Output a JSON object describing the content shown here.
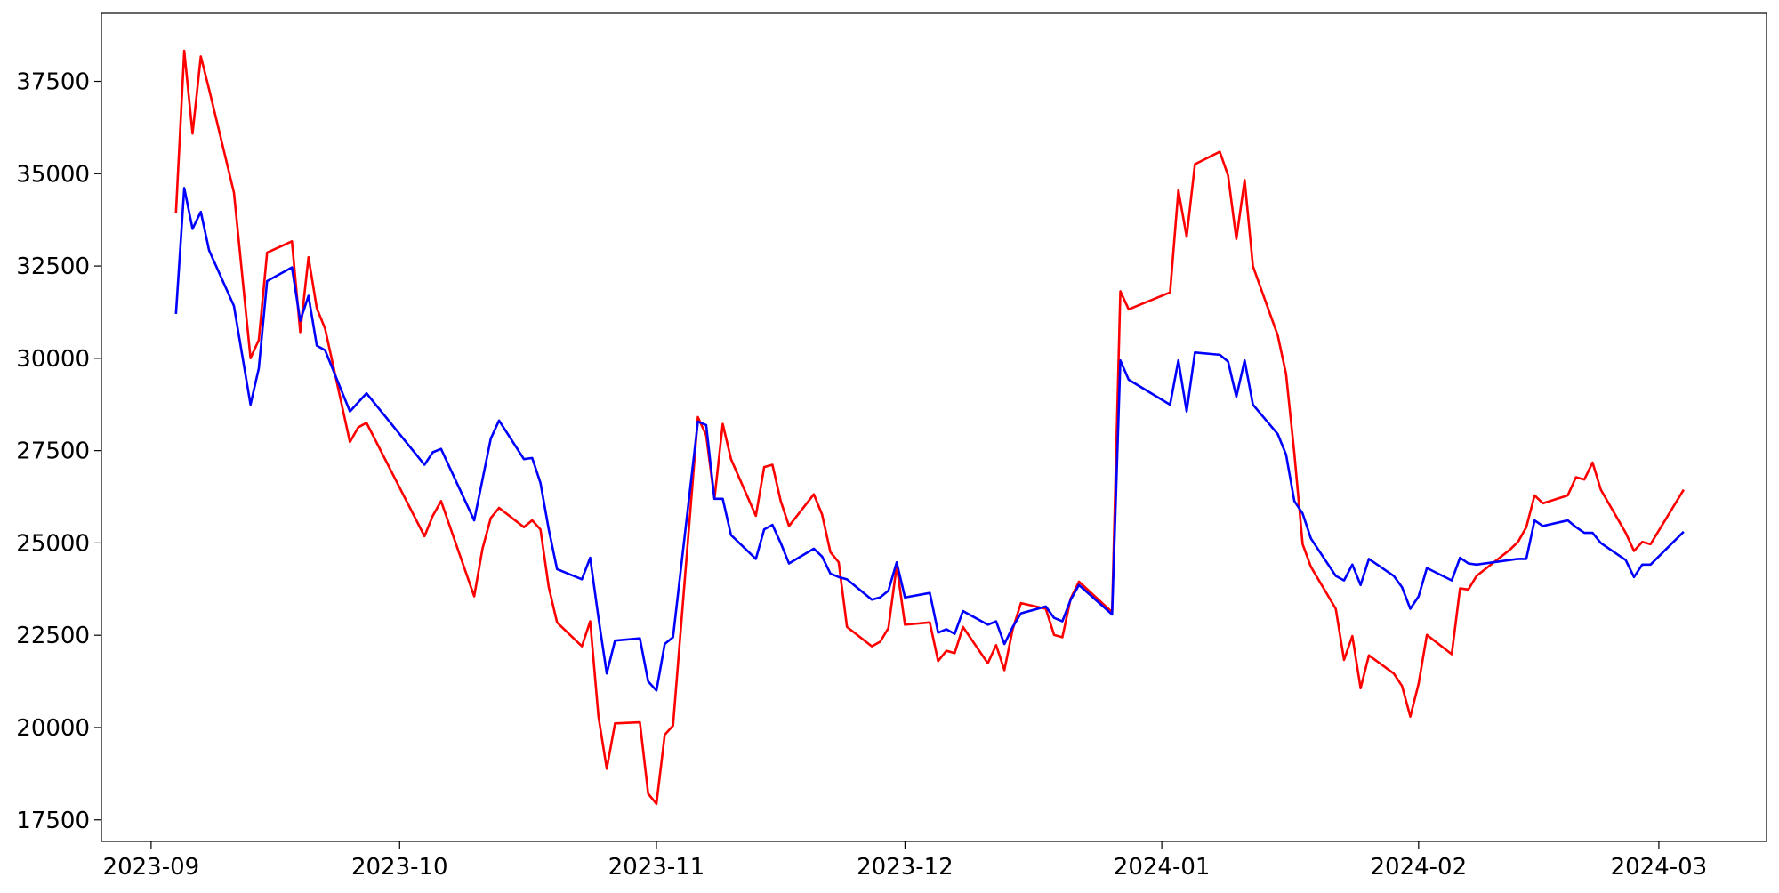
{
  "chart_data": {
    "type": "line",
    "x": [
      "2023-09-04",
      "2023-09-05",
      "2023-09-06",
      "2023-09-07",
      "2023-09-08",
      "2023-09-11",
      "2023-09-13",
      "2023-09-14",
      "2023-09-15",
      "2023-09-18",
      "2023-09-19",
      "2023-09-20",
      "2023-09-21",
      "2023-09-22",
      "2023-09-25",
      "2023-09-26",
      "2023-09-27",
      "2023-10-04",
      "2023-10-05",
      "2023-10-06",
      "2023-10-10",
      "2023-10-11",
      "2023-10-12",
      "2023-10-13",
      "2023-10-16",
      "2023-10-17",
      "2023-10-18",
      "2023-10-19",
      "2023-10-20",
      "2023-10-23",
      "2023-10-24",
      "2023-10-25",
      "2023-10-26",
      "2023-10-27",
      "2023-10-30",
      "2023-10-31",
      "2023-11-01",
      "2023-11-02",
      "2023-11-03",
      "2023-11-06",
      "2023-11-07",
      "2023-11-08",
      "2023-11-09",
      "2023-11-10",
      "2023-11-13",
      "2023-11-14",
      "2023-11-15",
      "2023-11-16",
      "2023-11-17",
      "2023-11-20",
      "2023-11-21",
      "2023-11-22",
      "2023-11-23",
      "2023-11-24",
      "2023-11-27",
      "2023-11-28",
      "2023-11-29",
      "2023-11-30",
      "2023-12-01",
      "2023-12-04",
      "2023-12-05",
      "2023-12-06",
      "2023-12-07",
      "2023-12-08",
      "2023-12-11",
      "2023-12-12",
      "2023-12-13",
      "2023-12-14",
      "2023-12-15",
      "2023-12-18",
      "2023-12-19",
      "2023-12-20",
      "2023-12-21",
      "2023-12-22",
      "2023-12-26",
      "2023-12-27",
      "2023-12-28",
      "2024-01-02",
      "2024-01-03",
      "2024-01-04",
      "2024-01-05",
      "2024-01-08",
      "2024-01-09",
      "2024-01-10",
      "2024-01-11",
      "2024-01-12",
      "2024-01-15",
      "2024-01-16",
      "2024-01-17",
      "2024-01-18",
      "2024-01-19",
      "2024-01-22",
      "2024-01-23",
      "2024-01-24",
      "2024-01-25",
      "2024-01-26",
      "2024-01-29",
      "2024-01-30",
      "2024-01-31",
      "2024-02-01",
      "2024-02-02",
      "2024-02-05",
      "2024-02-06",
      "2024-02-07",
      "2024-02-08",
      "2024-02-12",
      "2024-02-13",
      "2024-02-14",
      "2024-02-15",
      "2024-02-16",
      "2024-02-19",
      "2024-02-20",
      "2024-02-21",
      "2024-02-22",
      "2024-02-23",
      "2024-02-26",
      "2024-02-27",
      "2024-02-28",
      "2024-02-29",
      "2024-03-04"
    ],
    "series": [
      {
        "color": "#ff0000",
        "values": [
          33936,
          38329,
          36087,
          38176,
          37285,
          34489,
          30004,
          30496,
          32861,
          33168,
          30711,
          32738,
          31356,
          30803,
          27731,
          28130,
          28253,
          25181,
          25734,
          26134,
          23553,
          24843,
          25673,
          25949,
          25427,
          25611,
          25366,
          23799,
          22847,
          22201,
          22877,
          20297,
          18884,
          20112,
          20143,
          18208,
          17931,
          19805,
          20051,
          28407,
          27915,
          26195,
          28223,
          27270,
          25734,
          27055,
          27117,
          26134,
          25458,
          26318,
          25765,
          24751,
          24475,
          22724,
          22201,
          22324,
          22693,
          24383,
          22785,
          22847,
          21802,
          22079,
          22017,
          22724,
          21741,
          22232,
          21556,
          22662,
          23369,
          23215,
          22509,
          22447,
          23492,
          23952,
          23123,
          31817,
          31325,
          31786,
          34551,
          33291,
          35257,
          35595,
          34950,
          33230,
          34827,
          32493,
          30619,
          29574,
          27424,
          24966,
          24352,
          23215,
          21833,
          22478,
          21065,
          21956,
          21464,
          21126,
          20297,
          21188,
          22509,
          21986,
          23768,
          23737,
          24106,
          24813,
          25028,
          25427,
          26287,
          26072,
          26287,
          26779,
          26717,
          27178,
          26441,
          25273,
          24782,
          25028,
          24966,
          26441
        ]
      },
      {
        "color": "#0000ff",
        "values": [
          31202,
          34612,
          33506,
          33967,
          32923,
          31417,
          28745,
          29728,
          32093,
          32462,
          31018,
          31694,
          30342,
          30219,
          28560,
          28806,
          29052,
          27117,
          27455,
          27547,
          25611,
          26717,
          27823,
          28315,
          27270,
          27301,
          26625,
          25366,
          24290,
          24014,
          24598,
          22969,
          21464,
          22355,
          22416,
          21249,
          21003,
          22263,
          22447,
          28284,
          28192,
          26195,
          26195,
          25212,
          24567,
          25366,
          25488,
          24997,
          24444,
          24843,
          24628,
          24168,
          24075,
          24014,
          23461,
          23522,
          23707,
          24475,
          23522,
          23645,
          22570,
          22662,
          22539,
          23154,
          22785,
          22877,
          22263,
          22724,
          23092,
          23277,
          22969,
          22877,
          23461,
          23860,
          23062,
          29943,
          29421,
          28745,
          29943,
          28560,
          30158,
          30096,
          29912,
          28960,
          29943,
          28745,
          27946,
          27393,
          26134,
          25796,
          25120,
          24106,
          23983,
          24413,
          23860,
          24567,
          24106,
          23799,
          23215,
          23553,
          24321,
          23983,
          24598,
          24444,
          24413,
          24536,
          24567,
          24567,
          25611,
          25458,
          25611,
          25427,
          25273,
          25273,
          24997,
          24536,
          24075,
          24413,
          24413,
          25304
        ]
      }
    ],
    "xlim": [
      "2023-08-26",
      "2024-03-14"
    ],
    "xticks": [
      {
        "value": "2023-09-01",
        "label": "2023-09"
      },
      {
        "value": "2023-10-01",
        "label": "2023-10"
      },
      {
        "value": "2023-11-01",
        "label": "2023-11"
      },
      {
        "value": "2023-12-01",
        "label": "2023-12"
      },
      {
        "value": "2024-01-01",
        "label": "2024-01"
      },
      {
        "value": "2024-02-01",
        "label": "2024-02"
      },
      {
        "value": "2024-03-01",
        "label": "2024-03"
      }
    ],
    "ylim": [
      16916,
      39343
    ],
    "yticks": [
      17500,
      20000,
      22500,
      25000,
      27500,
      30000,
      32500,
      35000,
      37500
    ],
    "grid": false
  }
}
